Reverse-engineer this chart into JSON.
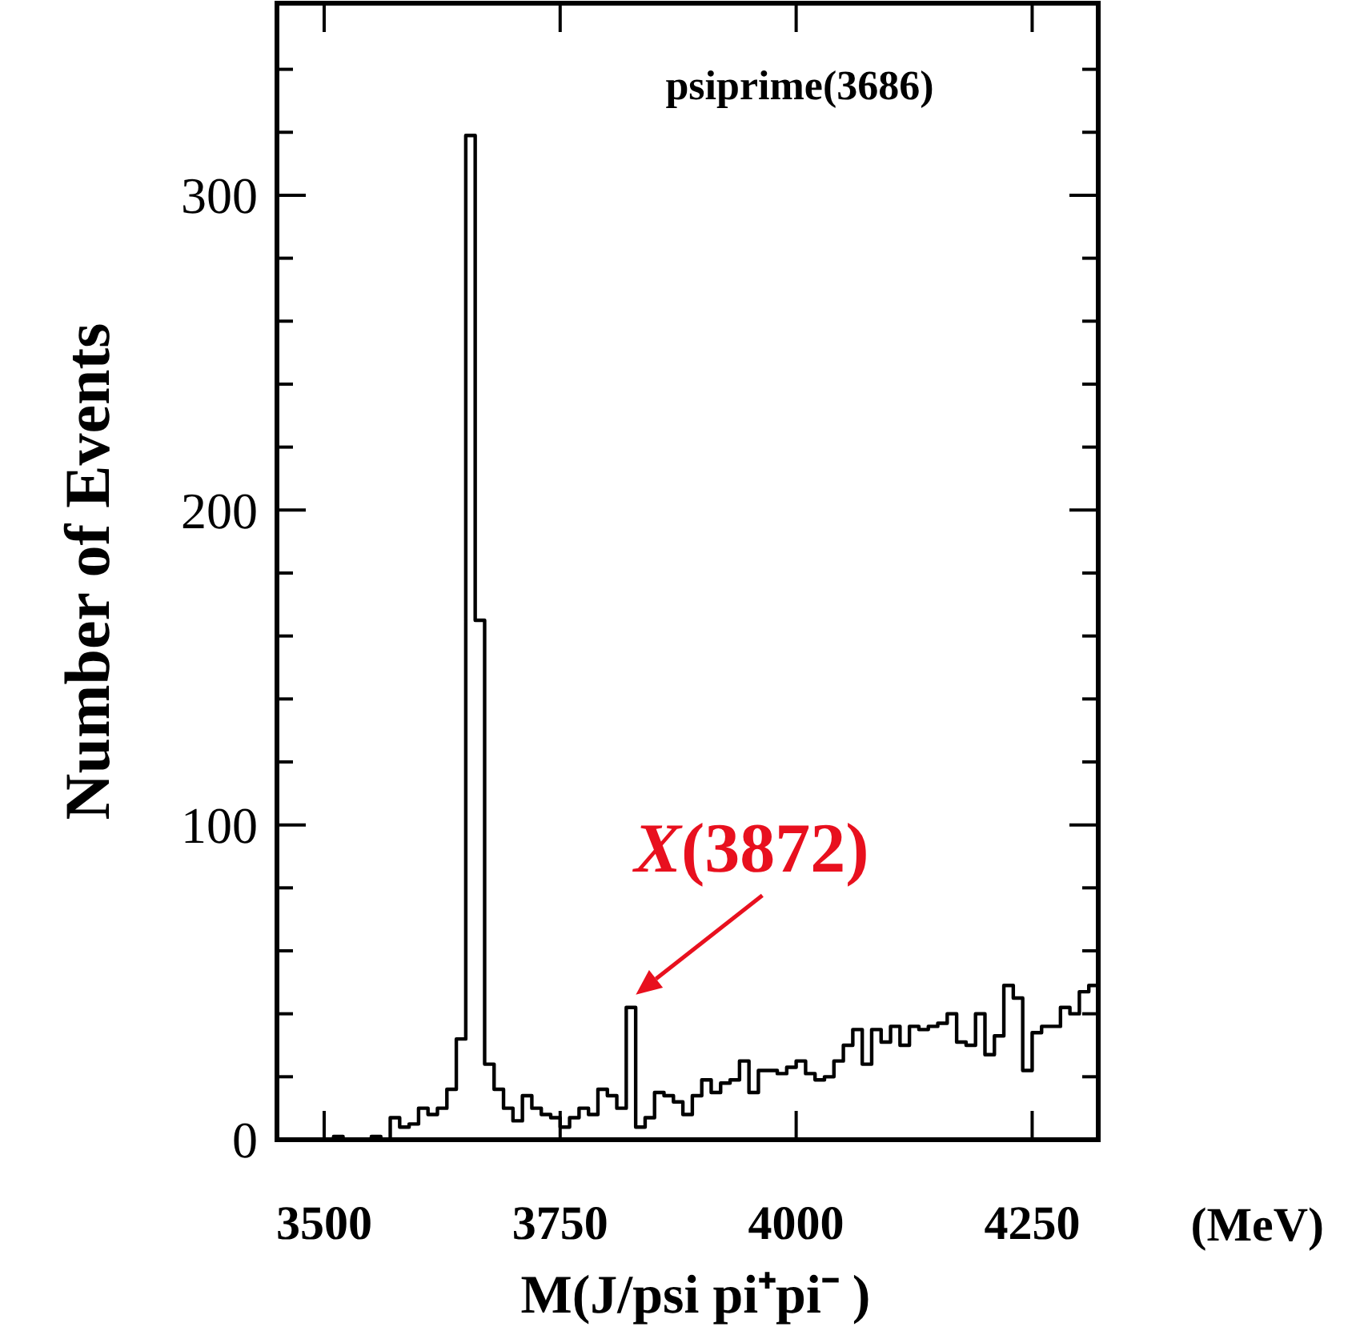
{
  "chart_data": {
    "type": "histogram",
    "title": "psiprime(3686)",
    "xlabel": "M(J/psi pi⁺pi⁻ )",
    "ylabel": "Number of Events",
    "bins": [
      3450,
      3460,
      3470,
      3480,
      3490,
      3500,
      3510,
      3520,
      3530,
      3540,
      3550,
      3560,
      3570,
      3580,
      3590,
      3600,
      3610,
      3620,
      3630,
      3640,
      3650,
      3660,
      3670,
      3680,
      3690,
      3700,
      3710,
      3720,
      3730,
      3740,
      3750,
      3760,
      3770,
      3780,
      3790,
      3800,
      3810,
      3820,
      3830,
      3840,
      3850,
      3860,
      3870,
      3880,
      3890,
      3900,
      3910,
      3920,
      3930,
      3940,
      3950,
      3960,
      3970,
      3980,
      3990,
      4000,
      4010,
      4020,
      4030,
      4040,
      4050,
      4060,
      4070,
      4080,
      4090,
      4100,
      4110,
      4120,
      4130,
      4140,
      4150,
      4160,
      4170,
      4180,
      4190,
      4200,
      4210,
      4220,
      4230,
      4240,
      4250,
      4260,
      4270,
      4280,
      4290,
      4300,
      4310,
      4320
    ],
    "values": [
      0,
      0,
      0,
      0,
      0,
      0,
      1,
      0,
      0,
      0,
      1,
      0,
      7,
      4,
      5,
      10,
      8,
      10,
      16,
      32,
      319,
      165,
      24,
      16,
      10,
      6,
      14,
      10,
      8,
      7,
      4,
      7,
      10,
      8,
      16,
      14,
      10,
      42,
      4,
      7,
      15,
      14,
      12,
      8,
      14,
      19,
      15,
      18,
      19,
      25,
      15,
      22,
      22,
      21,
      23,
      25,
      21,
      19,
      20,
      25,
      30,
      35,
      24,
      35,
      31,
      36,
      30,
      36,
      35,
      36,
      37,
      40,
      31,
      30,
      40,
      27,
      33,
      49,
      45,
      22,
      34,
      36,
      36,
      42,
      40,
      47,
      49
    ],
    "color": "#000000",
    "xlim": [
      3450,
      4320
    ],
    "xticks": [
      3500,
      3750,
      4000,
      4250
    ],
    "ylim": [
      0,
      361
    ],
    "yticks": [
      0,
      {
        "value": 20,
        "label": null
      },
      {
        "value": 40,
        "label": null
      },
      {
        "value": 60,
        "label": null
      },
      {
        "value": 80,
        "label": null
      },
      100,
      {
        "value": 120,
        "label": null
      },
      {
        "value": 140,
        "label": null
      },
      {
        "value": 160,
        "label": null
      },
      {
        "value": 180,
        "label": null
      },
      200,
      {
        "value": 220,
        "label": null
      },
      {
        "value": 240,
        "label": null
      },
      {
        "value": 260,
        "label": null
      },
      {
        "value": 280,
        "label": null
      },
      300,
      {
        "value": 320,
        "label": null
      },
      {
        "value": 340,
        "label": null
      }
    ],
    "annotations": [
      {
        "text": "X(3872)",
        "x": 3820,
        "y": 42
      },
      "(MeV)"
    ]
  }
}
